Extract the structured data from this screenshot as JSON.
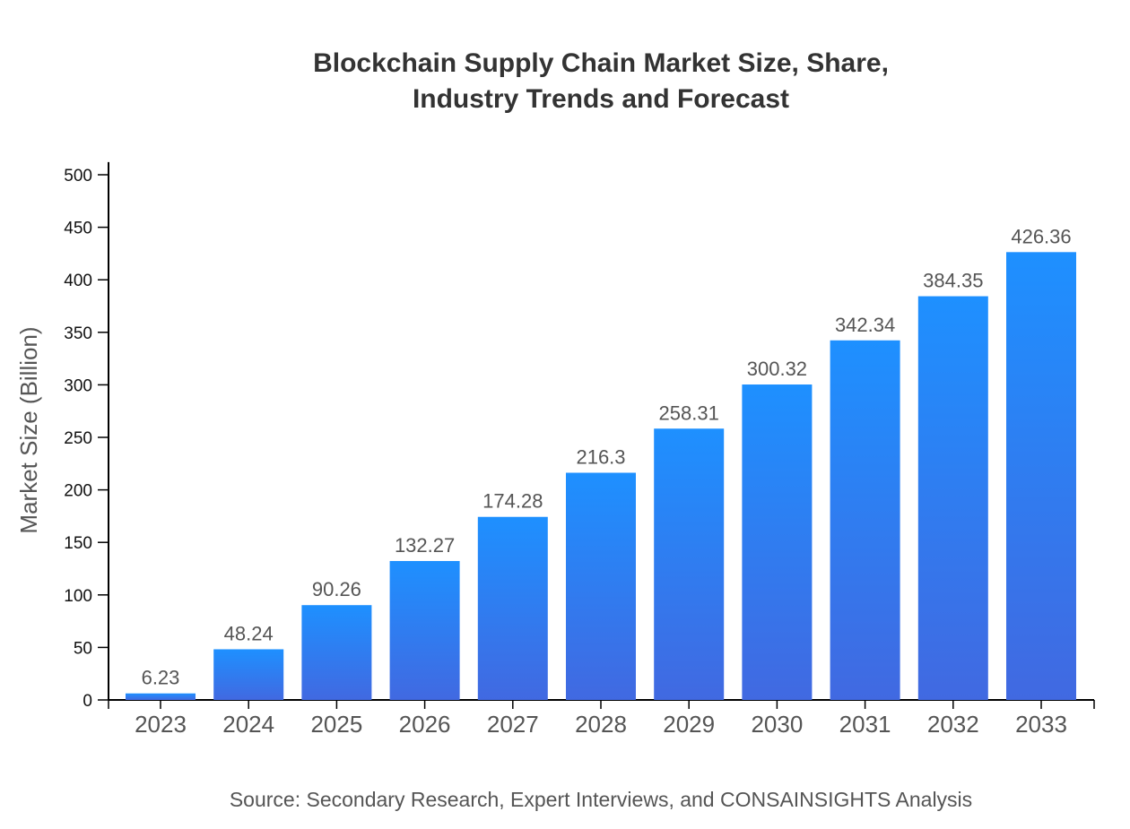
{
  "chart_data": {
    "type": "bar",
    "title_lines": [
      "Blockchain Supply Chain Market Size, Share,",
      "Industry Trends and Forecast"
    ],
    "xlabel": "",
    "ylabel": "Market Size (Billion)",
    "categories": [
      "2023",
      "2024",
      "2025",
      "2026",
      "2027",
      "2028",
      "2029",
      "2030",
      "2031",
      "2032",
      "2033"
    ],
    "values": [
      6.23,
      48.24,
      90.26,
      132.27,
      174.28,
      216.3,
      258.31,
      300.32,
      342.34,
      384.35,
      426.36
    ],
    "data_labels": [
      "6.23",
      "48.24",
      "90.26",
      "132.27",
      "174.28",
      "216.3",
      "258.31",
      "300.32",
      "342.34",
      "384.35",
      "426.36"
    ],
    "ylim": [
      0,
      512
    ],
    "yticks": [
      0,
      50,
      100,
      150,
      200,
      250,
      300,
      350,
      400,
      450,
      500
    ],
    "grid": false,
    "legend": "none",
    "colors": {
      "bar_top": "#1e90ff",
      "bar_bottom": "#4169e1",
      "title": "#333333",
      "labels": "#555555"
    },
    "source": "Source: Secondary Research, Expert Interviews, and CONSAINSIGHTS Analysis"
  }
}
